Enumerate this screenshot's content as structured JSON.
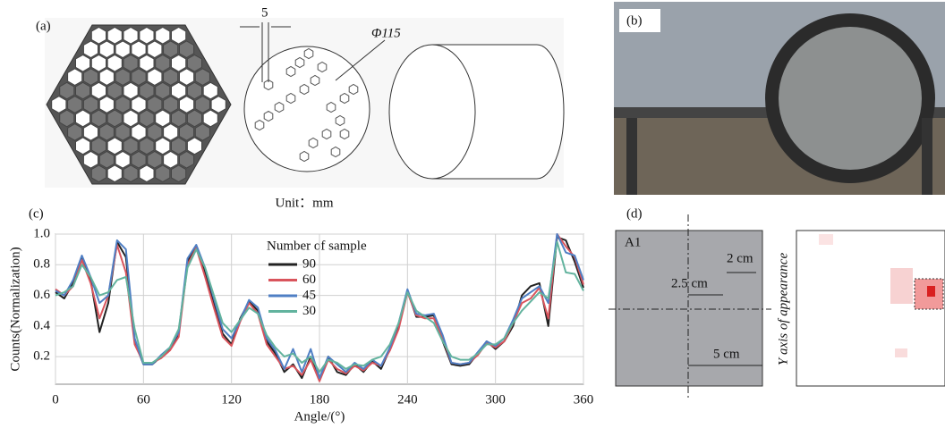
{
  "panel_a": {
    "label": "(a)",
    "pitch": "5",
    "diameter": "Φ115",
    "unit": "Unit：mm"
  },
  "panel_b": {
    "label": "(b)"
  },
  "panel_c": {
    "label": "(c)"
  },
  "panel_d": {
    "label": "(d)",
    "region": "A1",
    "dim_small": "2 cm",
    "dim_offset": "2.5 cm",
    "dim_large": "5 cm",
    "y_axis_label": "Y axis of appearance"
  },
  "chart_data": {
    "type": "line",
    "x_label": "Angle/(°)",
    "y_label": "Counts(Normalization)",
    "legend_title": "Number of sample",
    "legend": "top-center",
    "grid": true,
    "x": [
      0,
      6,
      12,
      18,
      24,
      30,
      36,
      42,
      48,
      54,
      60,
      66,
      72,
      78,
      84,
      90,
      96,
      102,
      108,
      114,
      120,
      126,
      132,
      138,
      144,
      150,
      156,
      162,
      168,
      174,
      180,
      186,
      192,
      198,
      204,
      210,
      216,
      222,
      228,
      234,
      240,
      246,
      252,
      258,
      264,
      270,
      276,
      282,
      288,
      294,
      300,
      306,
      312,
      318,
      324,
      330,
      336,
      342,
      348,
      354,
      360
    ],
    "xlim": [
      0,
      360
    ],
    "xticks": [
      0,
      60,
      120,
      180,
      240,
      300,
      360
    ],
    "ylim": [
      0.02,
      1.0
    ],
    "yticks": [
      0.2,
      0.4,
      0.6,
      0.8,
      {
        "value": 1,
        "label": "1.0"
      }
    ],
    "series": [
      {
        "name": "90",
        "color": "#222222",
        "values": [
          0.62,
          0.58,
          0.68,
          0.85,
          0.7,
          0.36,
          0.55,
          0.95,
          0.85,
          0.3,
          0.15,
          0.15,
          0.2,
          0.25,
          0.35,
          0.82,
          0.92,
          0.75,
          0.55,
          0.35,
          0.28,
          0.45,
          0.56,
          0.5,
          0.3,
          0.22,
          0.1,
          0.15,
          0.06,
          0.2,
          0.05,
          0.2,
          0.1,
          0.08,
          0.15,
          0.1,
          0.17,
          0.12,
          0.25,
          0.4,
          0.63,
          0.46,
          0.46,
          0.47,
          0.3,
          0.15,
          0.14,
          0.15,
          0.22,
          0.3,
          0.25,
          0.3,
          0.4,
          0.6,
          0.66,
          0.68,
          0.4,
          0.98,
          0.96,
          0.82,
          0.65
        ]
      },
      {
        "name": "60",
        "color": "#d9545c",
        "values": [
          0.64,
          0.6,
          0.66,
          0.83,
          0.68,
          0.45,
          0.6,
          0.93,
          0.75,
          0.28,
          0.16,
          0.16,
          0.19,
          0.24,
          0.33,
          0.8,
          0.91,
          0.72,
          0.52,
          0.33,
          0.27,
          0.43,
          0.55,
          0.48,
          0.28,
          0.2,
          0.12,
          0.14,
          0.08,
          0.18,
          0.04,
          0.18,
          0.12,
          0.09,
          0.14,
          0.11,
          0.16,
          0.14,
          0.24,
          0.38,
          0.62,
          0.47,
          0.45,
          0.45,
          0.32,
          0.16,
          0.15,
          0.16,
          0.21,
          0.29,
          0.26,
          0.3,
          0.42,
          0.55,
          0.58,
          0.65,
          0.45,
          1.0,
          0.92,
          0.85,
          0.67
        ]
      },
      {
        "name": "45",
        "color": "#4f7fc4",
        "values": [
          0.63,
          0.6,
          0.7,
          0.86,
          0.72,
          0.55,
          0.6,
          0.96,
          0.9,
          0.32,
          0.15,
          0.15,
          0.21,
          0.26,
          0.36,
          0.84,
          0.93,
          0.78,
          0.58,
          0.38,
          0.32,
          0.44,
          0.57,
          0.52,
          0.32,
          0.24,
          0.12,
          0.25,
          0.1,
          0.25,
          0.06,
          0.2,
          0.15,
          0.1,
          0.16,
          0.12,
          0.18,
          0.14,
          0.26,
          0.42,
          0.64,
          0.48,
          0.47,
          0.48,
          0.34,
          0.16,
          0.15,
          0.16,
          0.23,
          0.3,
          0.27,
          0.32,
          0.44,
          0.58,
          0.62,
          0.66,
          0.55,
          1.0,
          0.88,
          0.86,
          0.7
        ]
      },
      {
        "name": "30",
        "color": "#62b39e",
        "values": [
          0.6,
          0.62,
          0.66,
          0.8,
          0.72,
          0.6,
          0.62,
          0.7,
          0.72,
          0.38,
          0.16,
          0.16,
          0.2,
          0.26,
          0.38,
          0.78,
          0.9,
          0.78,
          0.6,
          0.42,
          0.36,
          0.44,
          0.52,
          0.48,
          0.34,
          0.26,
          0.2,
          0.22,
          0.16,
          0.2,
          0.1,
          0.18,
          0.16,
          0.12,
          0.15,
          0.14,
          0.18,
          0.2,
          0.28,
          0.42,
          0.62,
          0.5,
          0.46,
          0.42,
          0.3,
          0.2,
          0.18,
          0.18,
          0.22,
          0.28,
          0.28,
          0.32,
          0.42,
          0.5,
          0.56,
          0.62,
          0.58,
          0.95,
          0.75,
          0.74,
          0.63
        ]
      }
    ]
  }
}
